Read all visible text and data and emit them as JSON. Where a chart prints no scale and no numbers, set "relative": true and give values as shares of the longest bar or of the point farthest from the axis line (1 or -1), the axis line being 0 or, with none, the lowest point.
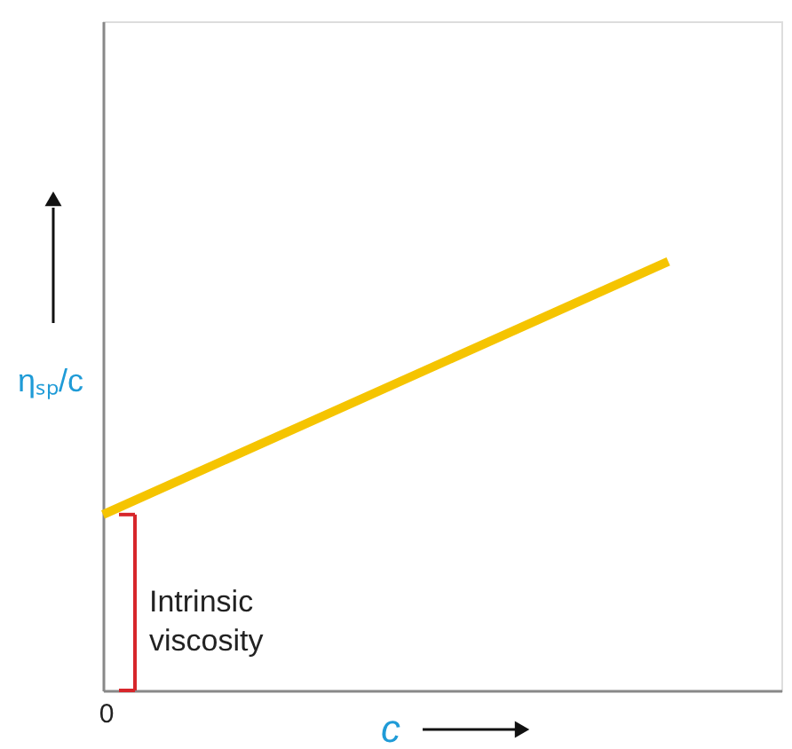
{
  "chart_data": {
    "type": "line",
    "relative": true,
    "xlabel": "c",
    "ylabel": "ηₛₚ/c",
    "categories": [
      null,
      null
    ],
    "series": [
      {
        "color": "#f5c400",
        "values": [
          0.41,
          1
        ]
      }
    ],
    "annotations": [
      "Intrinsic viscosity",
      "0"
    ],
    "grid": false,
    "marker": "none",
    "line_style": "solid"
  }
}
